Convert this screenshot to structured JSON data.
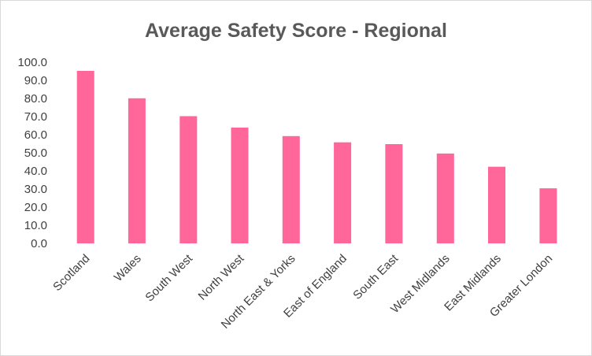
{
  "chart_data": {
    "type": "bar",
    "title": "Average Safety Score - Regional",
    "categories": [
      "Scotland",
      "Wales",
      "South West",
      "North West",
      "North East & Yorks",
      "East of England",
      "South East",
      "West Midlands",
      "East Midlands",
      "Greater London"
    ],
    "values": [
      95.2,
      80.1,
      70.2,
      63.9,
      59.2,
      55.8,
      54.8,
      49.6,
      42.3,
      30.4
    ],
    "ylim": [
      0,
      100
    ],
    "y_ticks": [
      "0.0",
      "10.0",
      "20.0",
      "30.0",
      "40.0",
      "50.0",
      "60.0",
      "70.0",
      "80.0",
      "90.0",
      "100.0"
    ],
    "grid": false,
    "legend": "none",
    "bar_color": "#ff6699"
  }
}
